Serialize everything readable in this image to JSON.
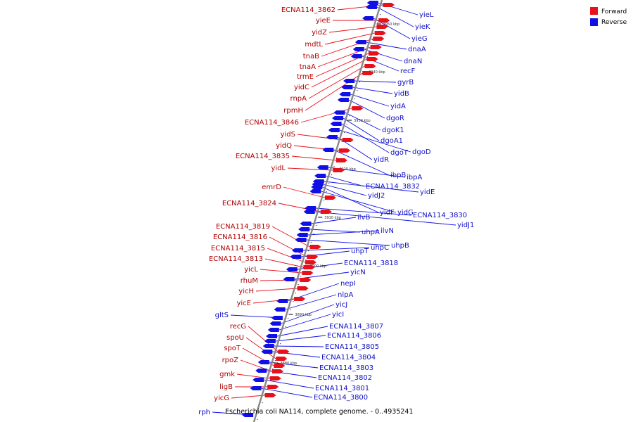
{
  "caption": "Escherichia coli NA114, complete genome. - 0..4935241",
  "colors": {
    "forward": "#e8101a",
    "reverse": "#1010e6",
    "axis": "#888888",
    "tick": "#000000"
  },
  "legend": [
    {
      "label": "Forward",
      "color": "#e8101a"
    },
    {
      "label": "Reverse",
      "color": "#1010e6"
    }
  ],
  "ticks": [
    "3950 kbp",
    "3940 kbp",
    "3930 kbp",
    "3920 kbp",
    "3910 kbp",
    "3900 kbp",
    "3890 kbp",
    "3880 kbp"
  ],
  "forward_genes": [
    "ECNA114_3862",
    "yieE",
    "yidZ",
    "mdtL",
    "tnaB",
    "tnaA",
    "trmE",
    "yidC",
    "rnpA",
    "rpmH",
    "ECNA114_3846",
    "yidS",
    "yidQ",
    "ECNA114_3835",
    "yidL",
    "emrD",
    "ECNA114_3824",
    "ECNA114_3819",
    "ECNA114_3816",
    "ECNA114_3815",
    "ECNA114_3813",
    "yicL",
    "rhuM",
    "yicH",
    "yicE",
    "recG",
    "spoU",
    "spoT",
    "rpoZ",
    "gmk",
    "ligB",
    "yicG"
  ],
  "reverse_genes_left": [
    "gltS",
    "rph"
  ],
  "reverse_genes": [
    "yieL",
    "yieK",
    "yieG",
    "dnaA",
    "dnaN",
    "recF",
    "gyrB",
    "yidB",
    "yidA",
    "dgoR",
    "dgoK1",
    "dgoA1",
    "dgoT",
    "dgoD",
    "yidR",
    "ibpB",
    "ibpA",
    "ECNA114_3832",
    "yidE",
    "yidJ2",
    "yidF",
    "yidG",
    "ECNA114_3830",
    "yidJ1",
    "ilvB",
    "uhpA",
    "ilvN",
    "uhpB",
    "uhpC",
    "uhpT",
    "ECNA114_3818",
    "yicN",
    "nepI",
    "nlpA",
    "yicJ",
    "yicI",
    "ECNA114_3807",
    "ECNA114_3806",
    "ECNA114_3805",
    "ECNA114_3804",
    "ECNA114_3803",
    "ECNA114_3802",
    "ECNA114_3801",
    "ECNA114_3800"
  ]
}
